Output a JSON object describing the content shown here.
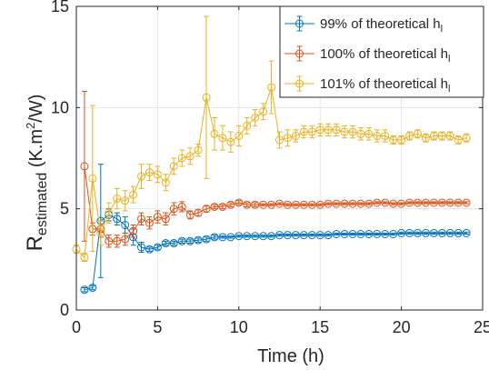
{
  "chart_data": {
    "type": "line",
    "xlabel": "Time (h)",
    "ylabel": {
      "main": "R",
      "sub": "estimated",
      "units_pre": " (K.m",
      "units_sup": "2",
      "units_post": "/W)"
    },
    "xlim": [
      0,
      25
    ],
    "ylim": [
      0,
      15
    ],
    "xticks": [
      "0",
      "5",
      "10",
      "15",
      "20",
      "25"
    ],
    "yticks": [
      "0",
      "5",
      "10",
      "15"
    ],
    "grid": true,
    "legend_position": "top-right",
    "series": [
      {
        "name": "99% of theoretical h",
        "name_sub": "l",
        "color": "#0072BD",
        "x": [
          0.5,
          1.0,
          1.5,
          2.0,
          2.5,
          3.0,
          3.5,
          4.0,
          4.5,
          5.0,
          5.5,
          6.0,
          6.5,
          7.0,
          7.5,
          8.0,
          8.5,
          9.0,
          9.5,
          10.0,
          10.5,
          11.0,
          11.5,
          12.0,
          12.5,
          13.0,
          13.5,
          14.0,
          14.5,
          15.0,
          15.5,
          16.0,
          16.5,
          17.0,
          17.5,
          18.0,
          18.5,
          19.0,
          19.5,
          20.0,
          20.5,
          21.0,
          21.5,
          22.0,
          22.5,
          23.0,
          23.5,
          24.0
        ],
        "y": [
          1.0,
          1.1,
          4.4,
          4.7,
          4.5,
          4.2,
          3.6,
          3.1,
          3.0,
          3.1,
          3.3,
          3.3,
          3.4,
          3.4,
          3.45,
          3.5,
          3.6,
          3.6,
          3.6,
          3.65,
          3.65,
          3.65,
          3.65,
          3.65,
          3.7,
          3.7,
          3.7,
          3.7,
          3.7,
          3.7,
          3.7,
          3.75,
          3.75,
          3.75,
          3.75,
          3.75,
          3.75,
          3.75,
          3.75,
          3.8,
          3.8,
          3.8,
          3.8,
          3.8,
          3.8,
          3.8,
          3.8,
          3.8
        ],
        "err": [
          0.1,
          0.1,
          2.8,
          0.3,
          0.3,
          0.4,
          0.4,
          0.25,
          0.1,
          0.1,
          0.1,
          0.1,
          0.1,
          0.1,
          0.1,
          0.1,
          0.1,
          0.05,
          0.05,
          0.05,
          0.05,
          0.05,
          0.05,
          0.05,
          0.05,
          0.05,
          0.05,
          0.05,
          0.05,
          0.05,
          0.05,
          0.05,
          0.05,
          0.05,
          0.05,
          0.05,
          0.05,
          0.05,
          0.05,
          0.05,
          0.05,
          0.05,
          0.05,
          0.05,
          0.05,
          0.05,
          0.05,
          0.05
        ]
      },
      {
        "name": "100% of theoretical h",
        "name_sub": "l",
        "color": "#D95319",
        "x": [
          0.5,
          1.0,
          1.5,
          2.0,
          2.5,
          3.0,
          3.5,
          4.0,
          4.5,
          5.0,
          5.5,
          6.0,
          6.5,
          7.0,
          7.5,
          8.0,
          8.5,
          9.0,
          9.5,
          10.0,
          10.5,
          11.0,
          11.5,
          12.0,
          12.5,
          13.0,
          13.5,
          14.0,
          14.5,
          15.0,
          15.5,
          16.0,
          16.5,
          17.0,
          17.5,
          18.0,
          18.5,
          19.0,
          19.5,
          20.0,
          20.5,
          21.0,
          21.5,
          22.0,
          22.5,
          23.0,
          23.5,
          24.0
        ],
        "y": [
          7.1,
          4.0,
          4.0,
          3.4,
          3.4,
          3.5,
          3.9,
          4.5,
          4.3,
          4.6,
          4.5,
          5.0,
          5.1,
          4.7,
          4.8,
          5.0,
          5.1,
          5.1,
          5.2,
          5.3,
          5.2,
          5.2,
          5.2,
          5.2,
          5.25,
          5.2,
          5.2,
          5.2,
          5.2,
          5.2,
          5.25,
          5.25,
          5.25,
          5.25,
          5.25,
          5.25,
          5.3,
          5.3,
          5.25,
          5.25,
          5.3,
          5.3,
          5.3,
          5.3,
          5.3,
          5.3,
          5.3,
          5.3
        ],
        "err": [
          3.7,
          0.3,
          0.4,
          0.3,
          0.3,
          0.3,
          0.3,
          0.3,
          0.3,
          0.3,
          0.3,
          0.3,
          0.25,
          0.2,
          0.15,
          0.15,
          0.1,
          0.1,
          0.1,
          0.1,
          0.1,
          0.1,
          0.05,
          0.05,
          0.05,
          0.05,
          0.05,
          0.05,
          0.05,
          0.05,
          0.05,
          0.05,
          0.05,
          0.05,
          0.05,
          0.05,
          0.05,
          0.05,
          0.05,
          0.05,
          0.05,
          0.05,
          0.05,
          0.05,
          0.05,
          0.05,
          0.05,
          0.05
        ]
      },
      {
        "name": "101% of theoretical h",
        "name_sub": "l",
        "color": "#EDB120",
        "x": [
          0.0,
          0.5,
          1.0,
          1.5,
          2.0,
          2.5,
          3.0,
          3.5,
          4.0,
          4.5,
          5.0,
          5.5,
          6.0,
          6.5,
          7.0,
          7.5,
          8.0,
          8.5,
          9.0,
          9.5,
          10.0,
          10.5,
          11.0,
          11.5,
          12.0,
          12.5,
          13.0,
          13.5,
          14.0,
          14.5,
          15.0,
          15.5,
          16.0,
          16.5,
          17.0,
          17.5,
          18.0,
          18.5,
          19.0,
          19.5,
          20.0,
          20.5,
          21.0,
          21.5,
          22.0,
          22.5,
          23.0,
          23.5,
          24.0
        ],
        "y": [
          3.0,
          2.6,
          6.5,
          3.8,
          4.8,
          5.5,
          5.4,
          5.7,
          6.6,
          6.8,
          6.7,
          6.3,
          7.1,
          7.5,
          7.6,
          7.9,
          10.5,
          8.7,
          8.5,
          8.3,
          8.6,
          9.1,
          9.5,
          9.8,
          11.0,
          8.4,
          8.5,
          8.6,
          8.8,
          8.8,
          8.9,
          8.9,
          8.9,
          8.8,
          8.8,
          8.7,
          8.7,
          8.6,
          8.6,
          8.4,
          8.4,
          8.6,
          8.7,
          8.5,
          8.6,
          8.6,
          8.6,
          8.4,
          8.5
        ],
        "err": [
          0.2,
          0.2,
          3.6,
          0.6,
          0.5,
          0.5,
          0.5,
          0.4,
          0.6,
          0.4,
          0.4,
          0.4,
          0.4,
          0.4,
          0.4,
          0.3,
          4.0,
          0.8,
          0.6,
          0.5,
          0.5,
          0.4,
          0.4,
          0.4,
          1.3,
          0.4,
          0.4,
          0.3,
          0.3,
          0.3,
          0.3,
          0.3,
          0.3,
          0.3,
          0.3,
          0.3,
          0.3,
          0.3,
          0.3,
          0.2,
          0.2,
          0.2,
          0.2,
          0.2,
          0.2,
          0.2,
          0.2,
          0.2,
          0.2
        ]
      }
    ]
  }
}
